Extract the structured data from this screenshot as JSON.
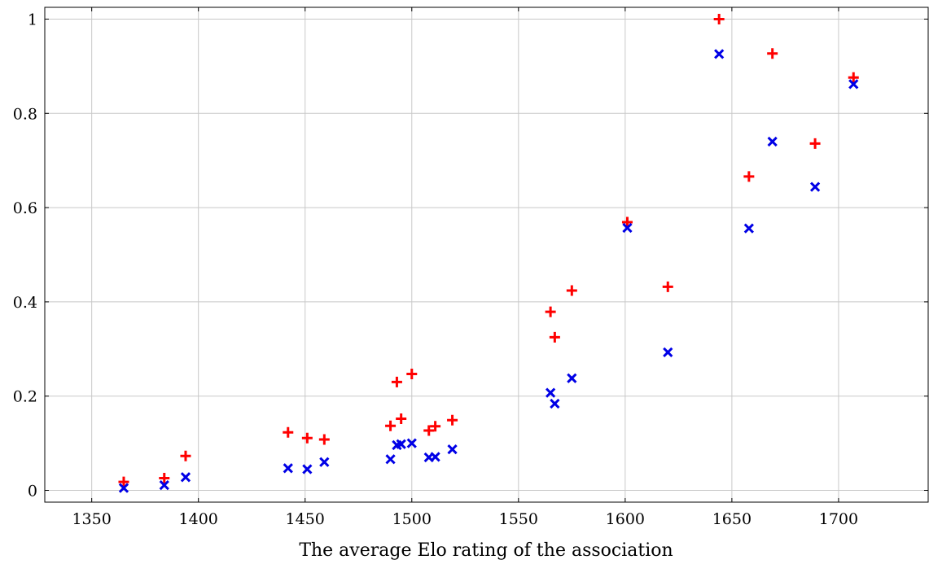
{
  "chart_data": {
    "type": "scatter",
    "title": "",
    "xlabel": "The average Elo rating of the association",
    "ylabel": "",
    "xlim": [
      1328,
      1742
    ],
    "ylim": [
      -0.025,
      1.025
    ],
    "x_ticks": [
      1350,
      1400,
      1450,
      1500,
      1550,
      1600,
      1650,
      1700
    ],
    "y_ticks": [
      0,
      0.2,
      0.4,
      0.6,
      0.8,
      1
    ],
    "x_tick_labels": [
      "1350",
      "1400",
      "1450",
      "1500",
      "1550",
      "1600",
      "1650",
      "1700"
    ],
    "y_tick_labels": [
      "0",
      "0.2",
      "0.4",
      "0.6",
      "0.8",
      "1"
    ],
    "grid": true,
    "legend": "none",
    "series": [
      {
        "marker": "plus",
        "color": "#ff0000",
        "points": [
          [
            1365,
            0.018
          ],
          [
            1384,
            0.026
          ],
          [
            1394,
            0.073
          ],
          [
            1442,
            0.123
          ],
          [
            1451,
            0.111
          ],
          [
            1459,
            0.108
          ],
          [
            1490,
            0.137
          ],
          [
            1493,
            0.23
          ],
          [
            1495,
            0.152
          ],
          [
            1500,
            0.247
          ],
          [
            1508,
            0.127
          ],
          [
            1511,
            0.136
          ],
          [
            1519,
            0.149
          ],
          [
            1565,
            0.379
          ],
          [
            1567,
            0.325
          ],
          [
            1575,
            0.424
          ],
          [
            1601,
            0.569
          ],
          [
            1620,
            0.432
          ],
          [
            1644,
            1.0
          ],
          [
            1658,
            0.666
          ],
          [
            1669,
            0.927
          ],
          [
            1689,
            0.736
          ],
          [
            1707,
            0.876
          ]
        ]
      },
      {
        "marker": "x",
        "color": "#0000e6",
        "points": [
          [
            1365,
            0.005
          ],
          [
            1384,
            0.011
          ],
          [
            1394,
            0.028
          ],
          [
            1442,
            0.047
          ],
          [
            1451,
            0.045
          ],
          [
            1459,
            0.06
          ],
          [
            1490,
            0.066
          ],
          [
            1493,
            0.096
          ],
          [
            1495,
            0.098
          ],
          [
            1500,
            0.1
          ],
          [
            1508,
            0.07
          ],
          [
            1511,
            0.071
          ],
          [
            1519,
            0.087
          ],
          [
            1565,
            0.207
          ],
          [
            1567,
            0.184
          ],
          [
            1575,
            0.238
          ],
          [
            1601,
            0.557
          ],
          [
            1620,
            0.293
          ],
          [
            1644,
            0.926
          ],
          [
            1658,
            0.556
          ],
          [
            1669,
            0.74
          ],
          [
            1689,
            0.644
          ],
          [
            1707,
            0.862
          ]
        ]
      }
    ]
  }
}
